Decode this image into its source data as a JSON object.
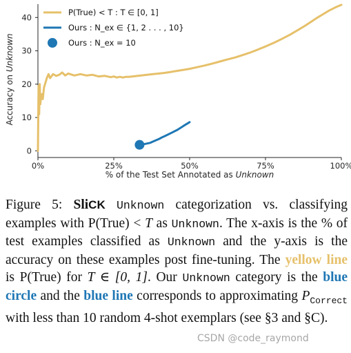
{
  "chart_data": {
    "type": "line",
    "xlabel_prefix": "% of the Test Set Annotated as ",
    "xlabel_em": "Unknown",
    "ylabel_prefix": "Accuracy on ",
    "ylabel_em": "Unknown",
    "xlim": [
      0,
      100
    ],
    "ylim": [
      -2,
      44
    ],
    "x_ticks": [
      0,
      25,
      50,
      75,
      100
    ],
    "x_tick_labels": [
      "0%",
      "25%",
      "50%",
      "75%",
      "100%"
    ],
    "y_ticks": [
      0,
      10,
      20,
      30,
      40
    ],
    "y_tick_labels": [
      "0",
      "10",
      "20",
      "30",
      "40"
    ],
    "grid": false,
    "legend_position": "top-left",
    "series": [
      {
        "name": "P(True) < T : T ∈ [0, 1]",
        "type": "line",
        "color": "#e6c06a",
        "x": [
          0.0,
          0.2,
          0.4,
          0.6,
          0.8,
          1.0,
          1.3,
          1.6,
          2.0,
          2.5,
          3.0,
          3.5,
          4.0,
          5.0,
          6.0,
          7.0,
          8.0,
          9.0,
          10.0,
          12.0,
          14.0,
          16.0,
          18.0,
          20.0,
          22.0,
          24.0,
          25.0,
          26.0,
          27.0,
          28.0,
          29.0,
          30.0,
          32.0,
          34.0,
          36.0,
          38.0,
          40.0,
          42.0,
          44.0,
          46.0,
          48.0,
          50.0,
          52.0,
          55.0,
          58.0,
          60.0,
          62.0,
          65.0,
          68.0,
          70.0,
          72.0,
          75.0,
          78.0,
          80.0,
          83.0,
          86.0,
          88.0,
          90.0,
          92.0,
          94.0,
          96.0,
          98.0,
          100.0
        ],
        "y": [
          0.0,
          19.5,
          11.0,
          20.0,
          14.0,
          16.5,
          17.0,
          15.5,
          19.0,
          20.5,
          22.0,
          23.0,
          21.8,
          23.0,
          22.5,
          22.8,
          23.5,
          22.6,
          23.2,
          22.6,
          23.0,
          22.6,
          22.8,
          22.3,
          22.5,
          22.1,
          22.3,
          22.0,
          22.2,
          22.0,
          22.2,
          22.2,
          22.4,
          22.6,
          22.8,
          23.0,
          23.2,
          23.4,
          23.7,
          24.0,
          24.3,
          24.6,
          25.0,
          25.6,
          26.3,
          26.8,
          27.3,
          28.0,
          28.9,
          29.5,
          30.2,
          31.3,
          32.5,
          33.4,
          34.8,
          36.4,
          37.5,
          38.7,
          39.9,
          41.0,
          42.1,
          43.0,
          43.8
        ]
      },
      {
        "name": "Ours : N_ex ∈ {1, 2 . . . , 10}",
        "type": "line",
        "color": "#1f77b4",
        "x": [
          34.0,
          35.0,
          36.0,
          37.0,
          38.0,
          39.0,
          40.0,
          41.0,
          42.0,
          44.0,
          46.0,
          48.0,
          50.0
        ],
        "y": [
          1.8,
          2.0,
          2.2,
          2.4,
          2.8,
          3.2,
          3.6,
          4.1,
          4.5,
          5.4,
          6.3,
          7.5,
          8.6
        ]
      },
      {
        "name": "Ours : N_ex = 10",
        "type": "scatter",
        "color": "#1f77b4",
        "x": [
          33.5
        ],
        "y": [
          1.8
        ]
      }
    ],
    "legend": [
      {
        "label": "P(True) < T : T ∈ [0, 1]",
        "kind": "line",
        "color": "#e6c06a"
      },
      {
        "label": "Ours : N_ex ∈ {1, 2 . . . , 10}",
        "kind": "line",
        "color": "#1f77b4"
      },
      {
        "label": "Ours : N_ex = 10",
        "kind": "marker",
        "color": "#1f77b4"
      }
    ]
  },
  "caption": {
    "fig_label": "Figure 5: ",
    "slick_sl": "Sli",
    "slick_ck": "CK",
    "t1": " ",
    "m1": "Unknown",
    "t2": " categorization vs. classifying examples with P(True) < ",
    "T": "T",
    "t3": " as ",
    "m2": "Unknown",
    "t4": ". The x-axis is the % of test examples classified as ",
    "m3": "Unknown",
    "t5": " and the y-axis is the accuracy on these examples post fine-tuning. The ",
    "yellow_line": "yellow line",
    "t6": " is P(True) for ",
    "T2": "T ∈ [0, 1]",
    "t7": ". Our ",
    "m4": "Unknown",
    "t8": " category is the ",
    "blue_circle": "blue circle",
    "t9": " and the ",
    "blue_line": "blue line",
    "t10": " corresponds to approximating ",
    "P": "P",
    "P_sub": "Correct",
    "t11": " with less than 10 random 4-shot exemplars (see §3 and §C)."
  },
  "watermark": "CSDN @code_raymond"
}
